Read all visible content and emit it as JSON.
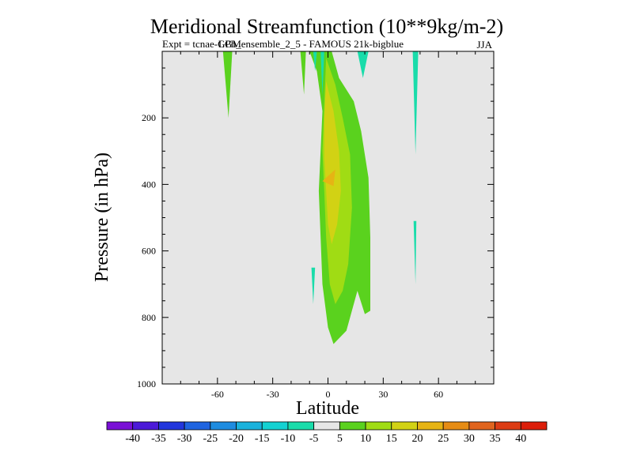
{
  "chart_data": {
    "type": "heatmap",
    "title": "Meridional Streamfunction (10**9kg/m-2)",
    "subtitle_left": "Expt = tcnae-GPh_ensemble_2_5 - FAMOUS 21k-bigblue",
    "subtitle_overlap": "LGM",
    "season": "JJA",
    "xlabel": "Latitude",
    "ylabel": "Pressure (in hPa)",
    "xlim": [
      -90,
      90
    ],
    "ylim": [
      1000,
      0
    ],
    "x_ticks": [
      -60,
      -30,
      0,
      30,
      60
    ],
    "y_ticks": [
      200,
      400,
      600,
      800,
      1000
    ],
    "background_fill": "#e6e6e6",
    "colorbar": {
      "labels": [
        "-40",
        "-35",
        "-30",
        "-25",
        "-20",
        "-15",
        "-10",
        "-5",
        "5",
        "10",
        "15",
        "20",
        "25",
        "30",
        "35",
        "40"
      ],
      "colors": [
        "#7a10d6",
        "#4c1ad8",
        "#2236dc",
        "#1f64e0",
        "#1e8ce0",
        "#19b2dc",
        "#14d2d2",
        "#19dcaa",
        "#e6e6e6",
        "#5ad21e",
        "#a0dc14",
        "#d2d214",
        "#e6b414",
        "#e68c14",
        "#e0641e",
        "#dc3c14",
        "#dc1e0a"
      ]
    },
    "regions": [
      {
        "level": "5",
        "color": "#5ad21e",
        "points": [
          [
            -57,
            0
          ],
          [
            -52,
            0
          ],
          [
            -54,
            200
          ]
        ]
      },
      {
        "level": "5",
        "color": "#5ad21e",
        "points": [
          [
            -15,
            0
          ],
          [
            -12,
            0
          ],
          [
            -13,
            130
          ]
        ]
      },
      {
        "level": "5",
        "color": "#5ad21e",
        "points": [
          [
            -10,
            0
          ],
          [
            2,
            0
          ],
          [
            6,
            80
          ],
          [
            14,
            150
          ],
          [
            18,
            240
          ],
          [
            22,
            380
          ],
          [
            23,
            560
          ],
          [
            23,
            780
          ],
          [
            20,
            790
          ],
          [
            16,
            720
          ],
          [
            10,
            840
          ],
          [
            3,
            880
          ],
          [
            0,
            830
          ],
          [
            -3,
            700
          ],
          [
            -4,
            560
          ],
          [
            -5,
            420
          ],
          [
            -4,
            300
          ],
          [
            -3,
            180
          ],
          [
            -6,
            60
          ]
        ]
      },
      {
        "level": "10",
        "color": "#a0dc14",
        "points": [
          [
            -1,
            20
          ],
          [
            4,
            100
          ],
          [
            8,
            200
          ],
          [
            12,
            310
          ],
          [
            13,
            470
          ],
          [
            11,
            640
          ],
          [
            8,
            720
          ],
          [
            4,
            760
          ],
          [
            1,
            700
          ],
          [
            -1,
            560
          ],
          [
            -2,
            420
          ],
          [
            -3,
            300
          ],
          [
            -2,
            160
          ]
        ]
      },
      {
        "level": "15",
        "color": "#d2d214",
        "points": [
          [
            -1,
            90
          ],
          [
            3,
            180
          ],
          [
            6,
            300
          ],
          [
            7,
            420
          ],
          [
            5,
            520
          ],
          [
            2,
            580
          ],
          [
            0,
            520
          ],
          [
            -1,
            420
          ],
          [
            -2,
            320
          ],
          [
            -2,
            200
          ]
        ]
      },
      {
        "level": "20",
        "color": "#e6b414",
        "points": [
          [
            -3,
            390
          ],
          [
            4,
            355
          ],
          [
            3,
            405
          ]
        ]
      },
      {
        "level": "-5",
        "color": "#19dcaa",
        "points": [
          [
            -8,
            0
          ],
          [
            -6,
            0
          ],
          [
            -7,
            60
          ]
        ]
      },
      {
        "level": "-5",
        "color": "#19dcaa",
        "points": [
          [
            -4,
            0
          ],
          [
            -2,
            0
          ],
          [
            -3,
            130
          ]
        ]
      },
      {
        "level": "-5",
        "color": "#19dcaa",
        "points": [
          [
            16,
            0
          ],
          [
            22,
            0
          ],
          [
            19,
            80
          ]
        ]
      },
      {
        "level": "-5",
        "color": "#19dcaa",
        "points": [
          [
            46,
            0
          ],
          [
            49,
            0
          ],
          [
            47.5,
            310
          ]
        ]
      },
      {
        "level": "-5",
        "color": "#19dcaa",
        "points": [
          [
            46.5,
            510
          ],
          [
            48,
            510
          ],
          [
            47.5,
            700
          ]
        ]
      },
      {
        "level": "-5",
        "color": "#19dcaa",
        "points": [
          [
            -9,
            650
          ],
          [
            -7,
            650
          ],
          [
            -8,
            760
          ]
        ]
      }
    ]
  }
}
